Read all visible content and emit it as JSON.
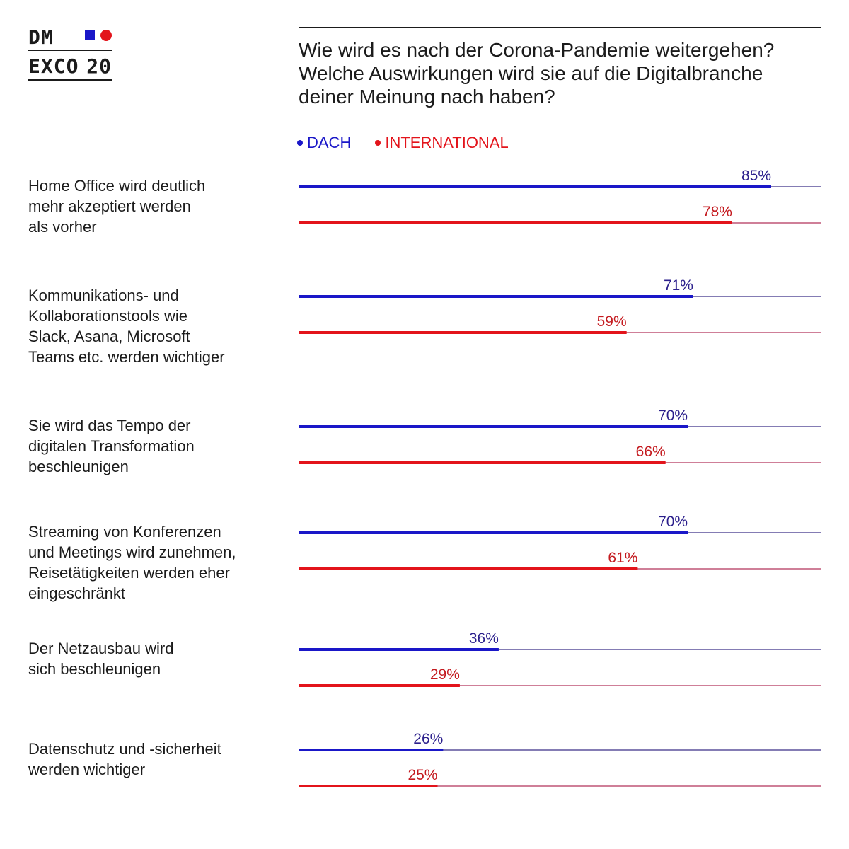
{
  "logo": {
    "line1": "DM",
    "line2": "EXCO",
    "line2_year": "20",
    "square_color": "#1a17c8",
    "dot_color": "#e3141b"
  },
  "title_lines": [
    "Wie wird es nach der Corona-Pandemie weitergehen?",
    "Welche Auswirkungen wird sie auf die Digitalbranche",
    "deiner Meinung nach haben?"
  ],
  "colors": {
    "dach": "#1a17c8",
    "international": "#e3141b",
    "dach_track": "#3b2f86",
    "international_track": "#b2335a"
  },
  "chart_data": {
    "type": "bar",
    "orientation": "horizontal",
    "title": "Wie wird es nach der Corona-Pandemie weitergehen? Welche Auswirkungen wird sie auf die Digitalbranche deiner Meinung nach haben?",
    "unit": "%",
    "xlim": [
      0,
      100
    ],
    "legend_position": "top-left",
    "series": [
      {
        "key": "dach",
        "name": "DACH",
        "values": [
          85,
          71,
          70,
          70,
          36,
          26
        ]
      },
      {
        "key": "international",
        "name": "INTERNATIONAL",
        "values": [
          78,
          59,
          66,
          61,
          29,
          25
        ]
      }
    ],
    "categories": [
      {
        "lines": [
          "Home Office wird deutlich",
          "mehr akzeptiert werden",
          "als vorher"
        ]
      },
      {
        "lines": [
          "Kommunikations- und",
          "Kollaborationstools wie",
          "Slack, Asana, Microsoft",
          "Teams etc. werden wichtiger"
        ]
      },
      {
        "lines": [
          "Sie wird das Tempo der",
          "digitalen Transformation",
          "beschleunigen"
        ]
      },
      {
        "lines": [
          "Streaming von Konferenzen",
          "und Meetings wird zunehmen,",
          "Reisetätigkeiten werden eher",
          "eingeschränkt"
        ]
      },
      {
        "lines": [
          "Der Netzausbau wird",
          "sich beschleunigen"
        ]
      },
      {
        "lines": [
          "Datenschutz und -sicherheit",
          "werden wichtiger"
        ]
      }
    ]
  }
}
